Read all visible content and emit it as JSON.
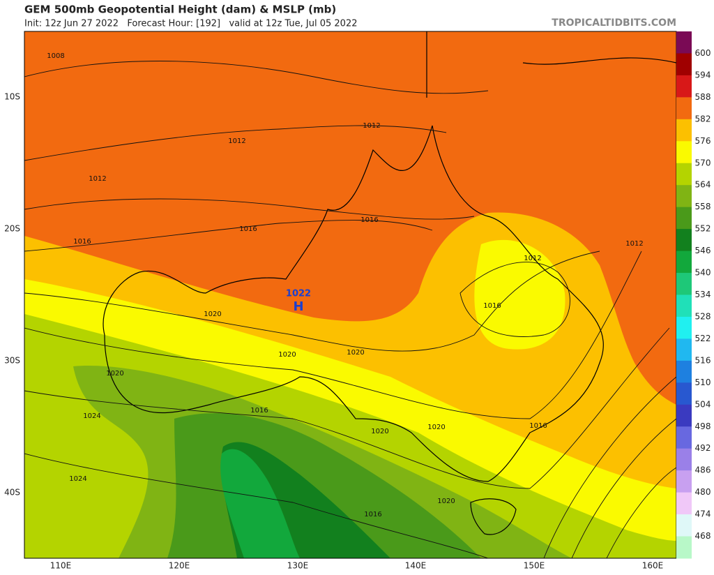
{
  "header": {
    "title": "GEM 500mb Geopotential Height (dam) & MSLP (mb)",
    "subtitle": "Init: 12z Jun 27 2022   Forecast Hour: [192]   valid at 12z Tue, Jul 05 2022",
    "credit": "TROPICALTIDBITS.COM"
  },
  "map": {
    "lat_labels": [
      "10S",
      "20S",
      "30S",
      "40S"
    ],
    "lon_labels": [
      "110E",
      "120E",
      "130E",
      "140E",
      "150E",
      "160E"
    ],
    "isobar_labels": [
      "1008",
      "1012",
      "1012",
      "1012",
      "1016",
      "1016",
      "1016",
      "1012",
      "1012",
      "1016",
      "1020",
      "1020",
      "1020",
      "1020",
      "1024",
      "1016",
      "1020",
      "1020",
      "1016",
      "1024",
      "1020",
      "1016"
    ],
    "high": {
      "pressure": "1022",
      "letter": "H"
    }
  },
  "colorbar": {
    "labels": [
      "600",
      "594",
      "588",
      "582",
      "576",
      "570",
      "564",
      "558",
      "552",
      "546",
      "540",
      "534",
      "528",
      "522",
      "516",
      "510",
      "504",
      "498",
      "492",
      "486",
      "480",
      "474",
      "468"
    ],
    "colors": [
      "#7a0a55",
      "#a00000",
      "#d81818",
      "#f26a10",
      "#fcc000",
      "#fafa00",
      "#b4d400",
      "#80b414",
      "#4a9a1a",
      "#12801e",
      "#12a83c",
      "#1ec878",
      "#20e0b8",
      "#20f0f0",
      "#20b8f0",
      "#1e80e0",
      "#2858d0",
      "#3a3ac0",
      "#6868e0",
      "#9a80e8",
      "#c8a0f0",
      "#f0c8f8",
      "#dff8f8",
      "#b8f8c8"
    ]
  }
}
